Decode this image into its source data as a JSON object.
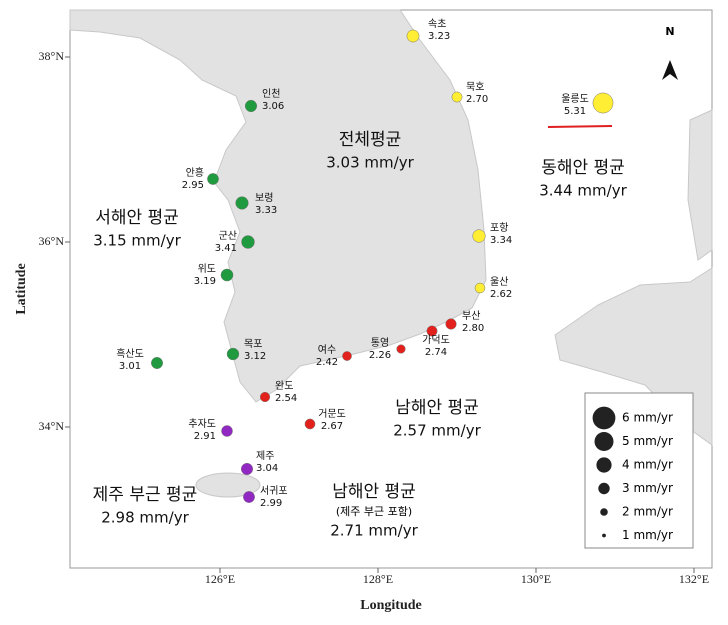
{
  "map": {
    "x_axis_label": "Longitude",
    "y_axis_label": "Latitude",
    "lon_ticks": [
      {
        "value": 126,
        "label": "126°E"
      },
      {
        "value": 128,
        "label": "128°E"
      },
      {
        "value": 130,
        "label": "130°E"
      },
      {
        "value": 132,
        "label": "132°E"
      }
    ],
    "lat_ticks": [
      {
        "value": 34,
        "label": "34°N"
      },
      {
        "value": 36,
        "label": "36°N"
      },
      {
        "value": 38,
        "label": "38°N"
      }
    ],
    "north": "N",
    "groups": [
      {
        "color": "#ffee33",
        "stations": [
          {
            "name": "속초",
            "value": 3.23
          },
          {
            "name": "묵호",
            "value": 2.7,
            "value_label": "2.70"
          },
          {
            "name": "울릉도",
            "value": 5.31
          },
          {
            "name": "포항",
            "value": 3.34
          },
          {
            "name": "울산",
            "value": 2.62
          }
        ]
      },
      {
        "color": "#1f9a3e",
        "stations": [
          {
            "name": "인천",
            "value": 3.06
          },
          {
            "name": "안흥",
            "value": 2.95
          },
          {
            "name": "보령",
            "value": 3.33
          },
          {
            "name": "군산",
            "value": 3.41
          },
          {
            "name": "위도",
            "value": 3.19
          },
          {
            "name": "목포",
            "value": 3.12
          },
          {
            "name": "흑산도",
            "value": 3.01
          }
        ]
      },
      {
        "color": "#e3211c",
        "stations": [
          {
            "name": "부산",
            "value": 2.8,
            "value_label": "2.80"
          },
          {
            "name": "가덕도",
            "value": 2.74
          },
          {
            "name": "통영",
            "value": 2.26
          },
          {
            "name": "여수",
            "value": 2.42
          },
          {
            "name": "완도",
            "value": 2.54
          },
          {
            "name": "거문도",
            "value": 2.67
          }
        ]
      },
      {
        "color": "#9128c2",
        "stations": [
          {
            "name": "추자도",
            "value": 2.91
          },
          {
            "name": "제주",
            "value": 3.04
          },
          {
            "name": "서귀포",
            "value": 2.99
          }
        ]
      }
    ],
    "region_averages": [
      {
        "title": "전체평균",
        "rate": "3.03 mm/yr"
      },
      {
        "title": "동해안 평균",
        "rate": "3.44 mm/yr"
      },
      {
        "title": "서해안 평균",
        "rate": "3.15 mm/yr"
      },
      {
        "title": "남해안 평균",
        "rate": "2.57 mm/yr"
      },
      {
        "title": "제주 부근 평균",
        "rate": "2.98 mm/yr"
      },
      {
        "title": "남해안 평균",
        "note": "(제주 부근 포함)",
        "rate": "2.71 mm/yr"
      }
    ],
    "legend": [
      {
        "value": 6,
        "label": "6 mm/yr"
      },
      {
        "value": 5,
        "label": "5 mm/yr"
      },
      {
        "value": 4,
        "label": "4 mm/yr"
      },
      {
        "value": 3,
        "label": "3 mm/yr"
      },
      {
        "value": 2,
        "label": "2 mm/yr"
      },
      {
        "value": 1,
        "label": "1 mm/yr"
      }
    ]
  }
}
